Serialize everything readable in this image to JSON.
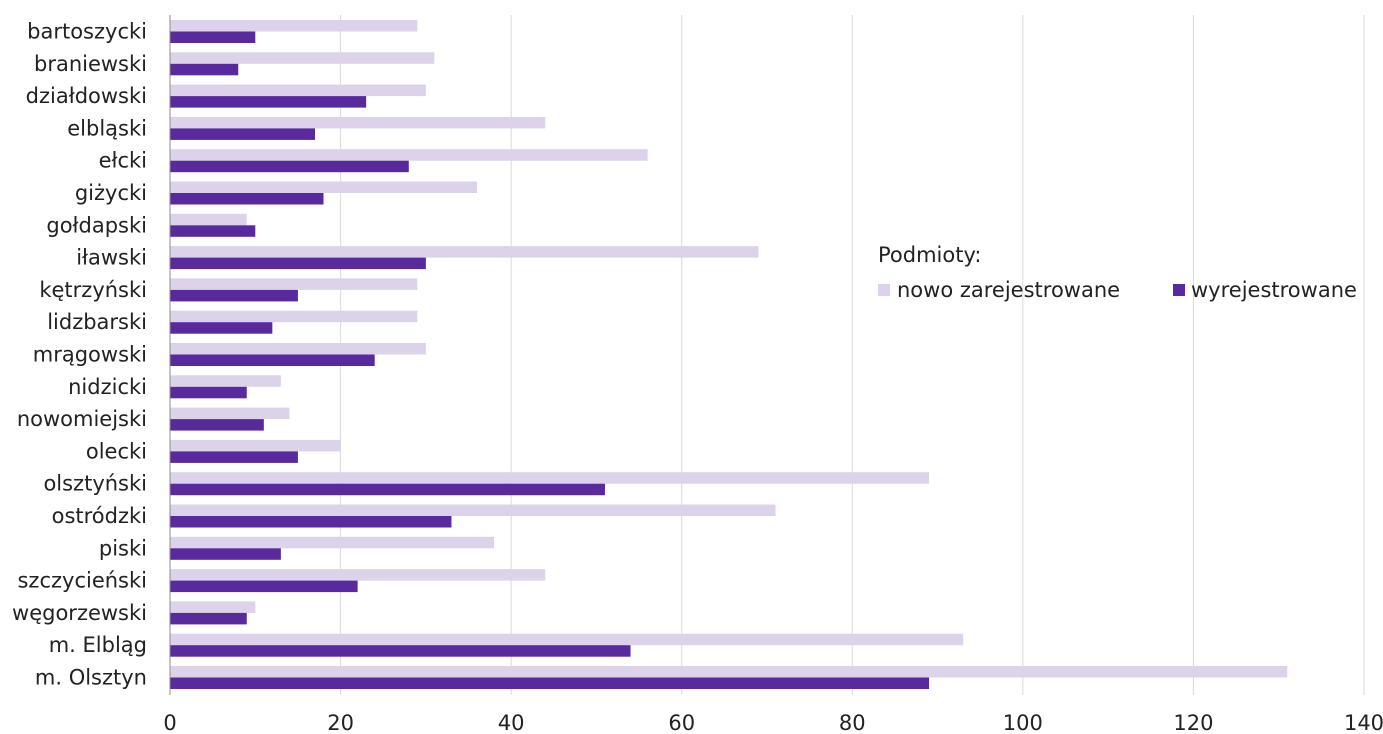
{
  "chart_data": {
    "type": "bar",
    "orientation": "horizontal",
    "categories": [
      "bartoszycki",
      "braniewski",
      "działdowski",
      "elbląski",
      "ełcki",
      "giżycki",
      "gołdapski",
      "iławski",
      "kętrzyński",
      "lidzbarski",
      "mrągowski",
      "nidzicki",
      "nowomiejski",
      "olecki",
      "olsztyński",
      "ostródzki",
      "piski",
      "szczycieński",
      "węgorzewski",
      "m. Elbląg",
      "m. Olsztyn"
    ],
    "series": [
      {
        "name": "nowo zarejestrowane",
        "color": "#dcd3ea",
        "values": [
          29,
          31,
          30,
          44,
          56,
          36,
          9,
          69,
          29,
          29,
          30,
          13,
          14,
          20,
          89,
          71,
          38,
          44,
          10,
          93,
          131
        ]
      },
      {
        "name": "wyrejestrowane",
        "color": "#582a9e",
        "values": [
          10,
          8,
          23,
          17,
          28,
          18,
          10,
          30,
          15,
          12,
          24,
          9,
          11,
          15,
          51,
          33,
          13,
          22,
          9,
          54,
          89
        ]
      }
    ],
    "xlim": [
      0,
      140
    ],
    "xticks": [
      "0",
      "20",
      "40",
      "60",
      "80",
      "100",
      "120",
      "140"
    ],
    "grid": "vertical",
    "legend": {
      "title": "Podmioty:",
      "placement": "right"
    }
  }
}
